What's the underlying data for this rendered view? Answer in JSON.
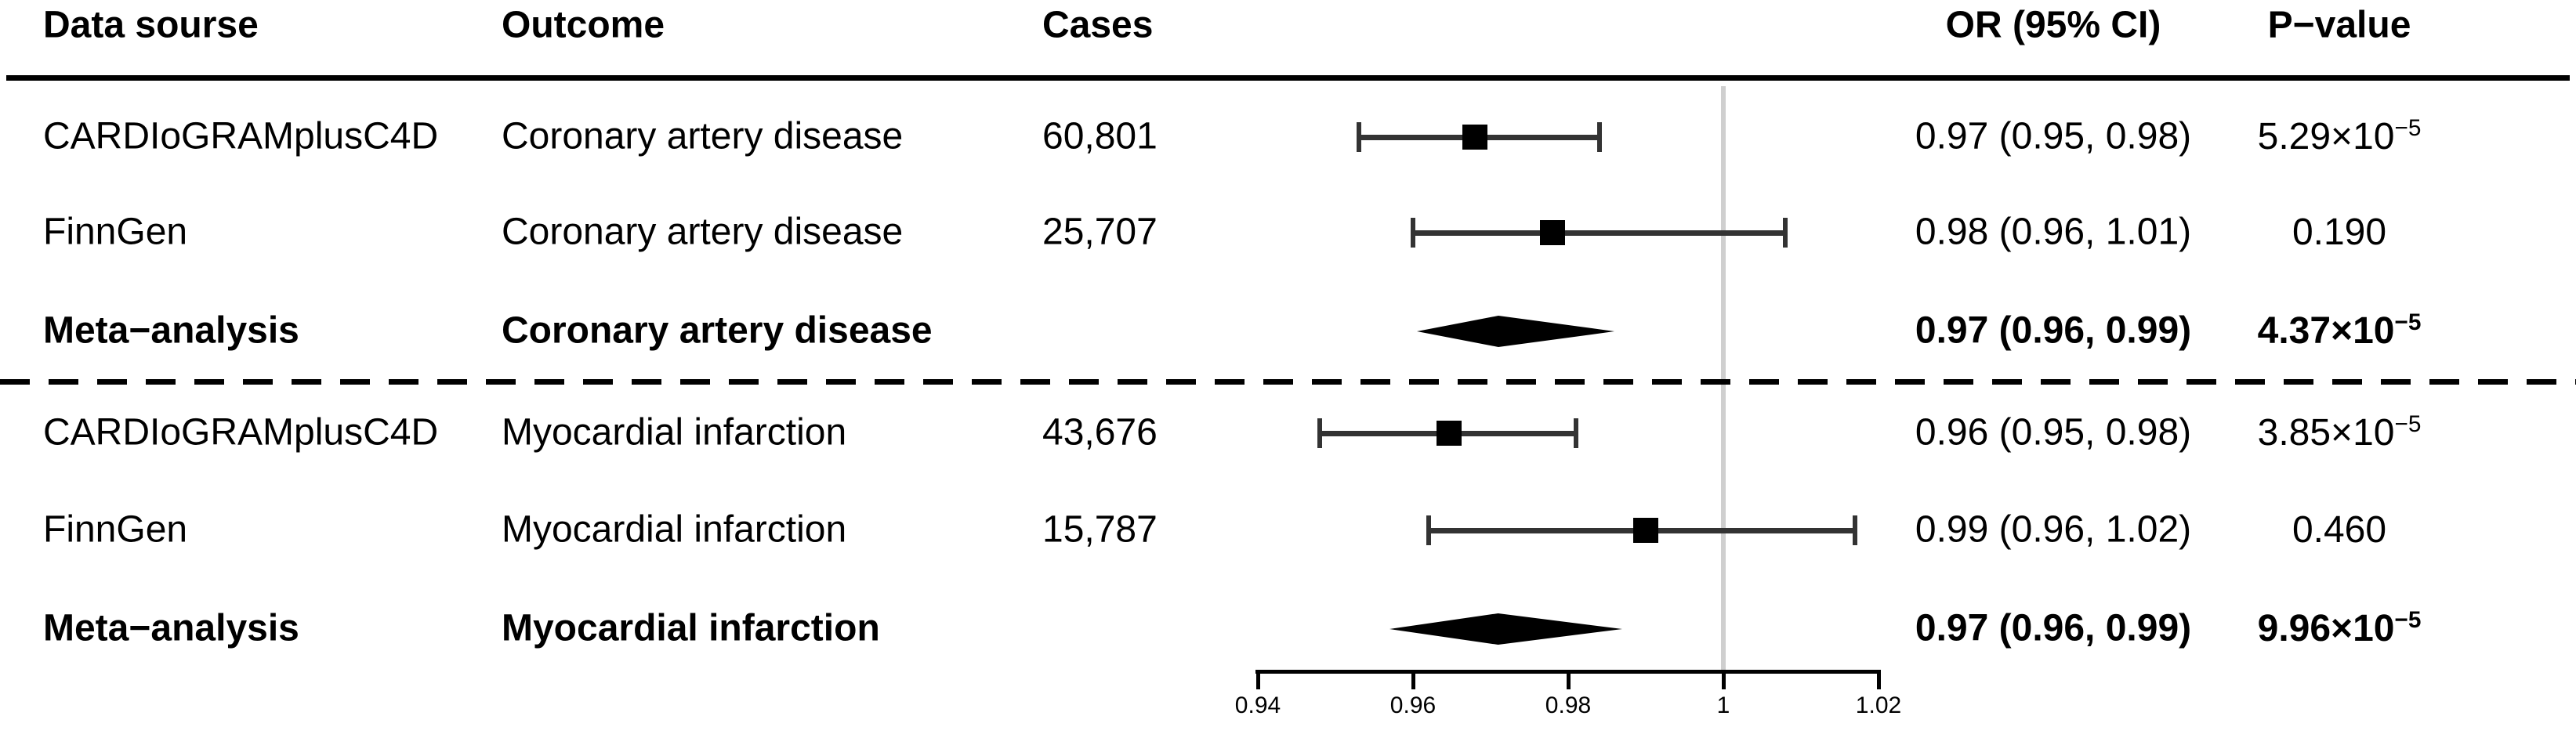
{
  "figure": {
    "columns": {
      "source": "Data sourse",
      "outcome": "Outcome",
      "cases": "Cases",
      "or_ci": "OR (95% CI)",
      "p_value": "P−value"
    },
    "rows": [
      {
        "source": "CARDIoGRAMplusC4D",
        "outcome": "Coronary artery disease",
        "cases": "60,801",
        "or_ci": "0.97 (0.95, 0.98)",
        "p": {
          "base": "5.29×10",
          "exp": "−5"
        }
      },
      {
        "source": "FinnGen",
        "outcome": "Coronary artery disease",
        "cases": "25,707",
        "or_ci": "0.98 (0.96, 1.01)",
        "p": {
          "base": "0.190",
          "exp": ""
        }
      },
      {
        "source": "Meta−analysis",
        "outcome": "Coronary artery disease",
        "cases": "",
        "or_ci": "0.97 (0.96, 0.99)",
        "p": {
          "base": "4.37×10",
          "exp": "−5"
        }
      },
      {
        "source": "CARDIoGRAMplusC4D",
        "outcome": "Myocardial infarction",
        "cases": "43,676",
        "or_ci": "0.96 (0.95, 0.98)",
        "p": {
          "base": "3.85×10",
          "exp": "−5"
        }
      },
      {
        "source": "FinnGen",
        "outcome": "Myocardial infarction",
        "cases": "15,787",
        "or_ci": "0.99 (0.96, 1.02)",
        "p": {
          "base": "0.460",
          "exp": ""
        }
      },
      {
        "source": "Meta−analysis",
        "outcome": "Myocardial infarction",
        "cases": "",
        "or_ci": "0.97 (0.96, 0.99)",
        "p": {
          "base": "9.96×10",
          "exp": "−5"
        }
      }
    ]
  },
  "chart_data": {
    "type": "forest",
    "effect_measure": "OR",
    "axis": {
      "min": 0.94,
      "max": 1.02,
      "ticks": [
        "0.94",
        "0.96",
        "0.98",
        "1",
        "1.02"
      ],
      "reference_line": 1
    },
    "legend": "none",
    "rows": [
      {
        "kind": "study",
        "source": "CARDIoGRAMplusC4D",
        "outcome": "Coronary artery disease",
        "cases": 60801,
        "or": 0.97,
        "ci_low": 0.95,
        "ci_high": 0.98,
        "p_value": "5.29×10⁻⁵",
        "plot_est": 0.968,
        "plot_lo": 0.953,
        "plot_hi": 0.984
      },
      {
        "kind": "study",
        "source": "FinnGen",
        "outcome": "Coronary artery disease",
        "cases": 25707,
        "or": 0.98,
        "ci_low": 0.96,
        "ci_high": 1.01,
        "p_value": "0.190",
        "plot_est": 0.978,
        "plot_lo": 0.96,
        "plot_hi": 1.008
      },
      {
        "kind": "meta",
        "source": "Meta−analysis",
        "outcome": "Coronary artery disease",
        "cases": null,
        "or": 0.97,
        "ci_low": 0.96,
        "ci_high": 0.99,
        "p_value": "4.37×10⁻⁵",
        "plot_est": 0.971,
        "plot_lo": 0.9605,
        "plot_hi": 0.986
      },
      {
        "kind": "study",
        "source": "CARDIoGRAMplusC4D",
        "outcome": "Myocardial infarction",
        "cases": 43676,
        "or": 0.96,
        "ci_low": 0.95,
        "ci_high": 0.98,
        "p_value": "3.85×10⁻⁵",
        "plot_est": 0.9646,
        "plot_lo": 0.948,
        "plot_hi": 0.981
      },
      {
        "kind": "study",
        "source": "FinnGen",
        "outcome": "Myocardial infarction",
        "cases": 15787,
        "or": 0.99,
        "ci_low": 0.96,
        "ci_high": 1.02,
        "p_value": "0.460",
        "plot_est": 0.99,
        "plot_lo": 0.962,
        "plot_hi": 1.017
      },
      {
        "kind": "meta",
        "source": "Meta−analysis",
        "outcome": "Myocardial infarction",
        "cases": null,
        "or": 0.97,
        "ci_low": 0.96,
        "ci_high": 0.99,
        "p_value": "9.96×10⁻⁵",
        "plot_est": 0.971,
        "plot_lo": 0.957,
        "plot_hi": 0.987
      }
    ],
    "colors": {
      "marker": "#000000",
      "ci_line": "#333333",
      "reference_line": "#cfcfcf",
      "diamond": "#000000"
    }
  }
}
